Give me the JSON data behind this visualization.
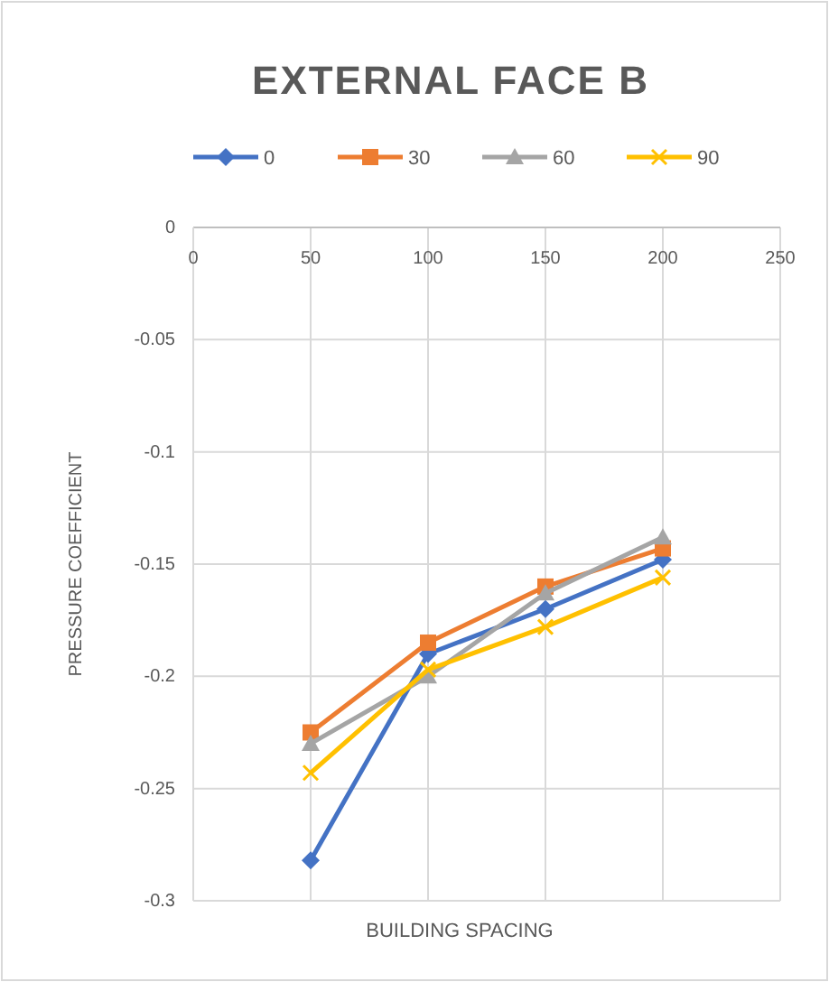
{
  "chart_data": {
    "type": "line",
    "title": "EXTERNAL FACE B",
    "xlabel": "BUILDING SPACING",
    "ylabel": "PRESSURE COEFFICIENT",
    "x": [
      50,
      100,
      150,
      200
    ],
    "xlim": [
      0,
      250
    ],
    "xticks": [
      0,
      50,
      100,
      150,
      200,
      250
    ],
    "ylim": [
      -0.3,
      0
    ],
    "yticks": [
      -0.3,
      -0.25,
      -0.2,
      -0.15,
      -0.1,
      -0.05,
      0
    ],
    "grid": true,
    "legend": "top",
    "line_style": "solid",
    "series": [
      {
        "name": "0",
        "color": "#4472c4",
        "marker": "diamond",
        "values": [
          -0.282,
          -0.19,
          -0.17,
          -0.148
        ]
      },
      {
        "name": "30",
        "color": "#ed7d31",
        "marker": "square",
        "values": [
          -0.225,
          -0.185,
          -0.16,
          -0.143
        ]
      },
      {
        "name": "60",
        "color": "#a5a5a5",
        "marker": "triangle",
        "values": [
          -0.23,
          -0.2,
          -0.163,
          -0.138
        ]
      },
      {
        "name": "90",
        "color": "#ffc000",
        "marker": "cross",
        "values": [
          -0.243,
          -0.197,
          -0.178,
          -0.156
        ]
      }
    ]
  }
}
